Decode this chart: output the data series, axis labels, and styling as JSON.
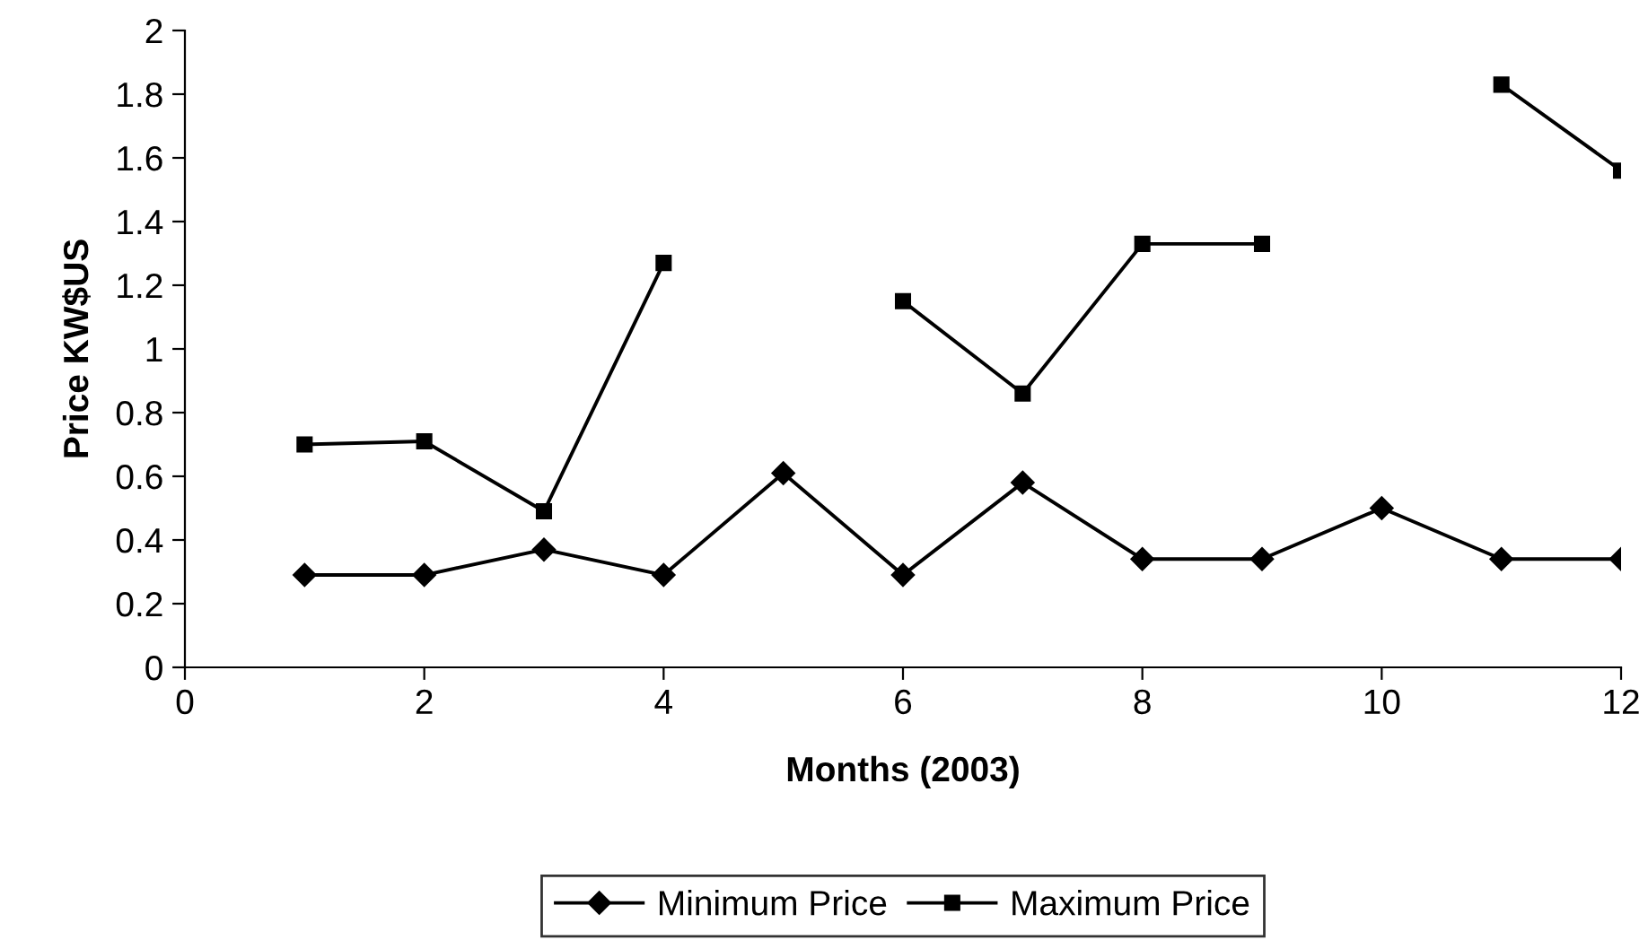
{
  "chart_data": {
    "type": "line",
    "xlabel": "Months (2003)",
    "ylabel": "Price KW$US",
    "x": [
      1,
      2,
      3,
      4,
      5,
      6,
      7,
      8,
      9,
      10,
      11,
      12
    ],
    "series": [
      {
        "name": "Minimum Price",
        "color": "#000000",
        "marker": "diamond",
        "values": [
          0.29,
          0.29,
          0.37,
          0.29,
          0.61,
          0.29,
          0.58,
          0.34,
          0.34,
          0.5,
          0.34,
          0.34
        ]
      },
      {
        "name": "Maximum Price",
        "color": "#000000",
        "marker": "square",
        "values": [
          0.7,
          0.71,
          0.49,
          1.27,
          null,
          1.15,
          0.86,
          1.33,
          1.33,
          null,
          1.83,
          1.56
        ]
      }
    ],
    "xlim": [
      0,
      12
    ],
    "xticks": [
      0,
      2,
      4,
      6,
      8,
      10,
      12
    ],
    "ylim": [
      0,
      2
    ],
    "yticks": [
      0,
      0.2,
      0.4,
      0.6,
      0.8,
      1,
      1.2,
      1.4,
      1.6,
      1.8,
      2
    ],
    "grid": false,
    "legend": "bottom",
    "line_style": "solid"
  }
}
